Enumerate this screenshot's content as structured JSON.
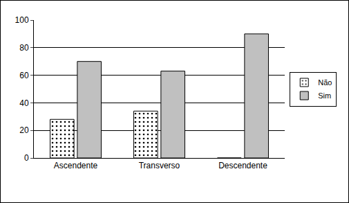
{
  "chart_data": {
    "type": "bar",
    "categories": [
      "Ascendente",
      "Transverso",
      "Descendente"
    ],
    "series": [
      {
        "name": "Não",
        "color": "#ffffff",
        "values": [
          28,
          34,
          0
        ]
      },
      {
        "name": "Sim",
        "color": "#c0c0c0",
        "values": [
          70,
          63,
          90
        ]
      }
    ],
    "ylim": [
      0,
      100
    ],
    "yticks": [
      0,
      20,
      40,
      60,
      80,
      100
    ],
    "grid": true,
    "legend": "right"
  }
}
